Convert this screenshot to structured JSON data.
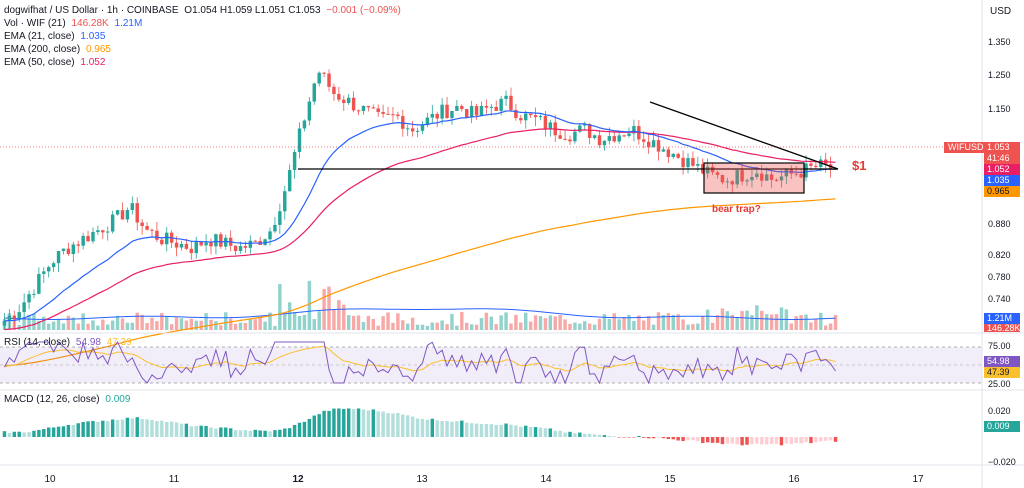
{
  "header": {
    "symbol": "dogwifhat / US Dollar · 1h · COINBASE",
    "ohlc": "O1.054  H1.059  L1.051  C1.053",
    "change": "−0.001 (−0.09%)",
    "currency": "USD"
  },
  "legend": {
    "vol_label": "Vol · WIF (21)",
    "vol_value": "146.28K",
    "vol_ma_value": "1.21M",
    "ema21_label": "EMA (21, close)",
    "ema21_value": "1.035",
    "ema200_label": "EMA (200, close)",
    "ema200_value": "0.965",
    "ema50_label": "EMA (50, close)",
    "ema50_value": "1.052"
  },
  "rsi": {
    "label": "RSI (14, close)",
    "value": "54.98",
    "ma_value": "47.39"
  },
  "macd": {
    "label": "MACD (12, 26, close)",
    "value": "0.009"
  },
  "price_axis_labels": [
    "1.350",
    "1.250",
    "1.150",
    "1.052",
    "0.880",
    "0.820",
    "0.780",
    "0.740"
  ],
  "rsi_axis_labels": [
    "75.00",
    "25.00"
  ],
  "macd_axis_labels": [
    "0.020",
    "0.009",
    "−0.020"
  ],
  "price_tags": {
    "ticker": "WIFUSD",
    "last": "1.053",
    "countdown": "41:46",
    "ema50": "1.052",
    "ema21": "1.035",
    "ema200": "0.965",
    "vol_ma": "1.21M",
    "vol": "146.28K",
    "rsi": "54.98",
    "rsi_ma": "47.39",
    "macd": "0.009"
  },
  "dates": [
    "10",
    "11",
    "12",
    "13",
    "14",
    "15",
    "16",
    "17"
  ],
  "annotations": {
    "dollar": "$1",
    "bear_trap": "bear trap?"
  },
  "colors": {
    "up": "#26a69a",
    "down": "#ef5350",
    "ema21": "#2962ff",
    "ema50": "#e91e63",
    "ema200": "#ff9800",
    "rsi": "#7e57c2",
    "rsi_ma": "#fbc02d"
  },
  "chart_data": {
    "type": "candlestick",
    "timeframe": "1h",
    "x_ticks": [
      "10",
      "11",
      "12",
      "13",
      "14",
      "15",
      "16",
      "17"
    ],
    "y_range": [
      0.7,
      1.38
    ],
    "series": [
      {
        "name": "EMA (21, close)",
        "last": 1.035
      },
      {
        "name": "EMA (50, close)",
        "last": 1.052
      },
      {
        "name": "EMA (200, close)",
        "last": 0.965
      }
    ],
    "close_path": [
      0.72,
      0.75,
      0.8,
      0.85,
      0.88,
      0.9,
      0.92,
      0.94,
      0.97,
      0.92,
      0.9,
      0.89,
      0.88,
      0.9,
      0.89,
      0.88,
      0.89,
      0.92,
      1.02,
      1.15,
      1.27,
      1.22,
      1.2,
      1.18,
      1.16,
      1.17,
      1.14,
      1.16,
      1.18,
      1.19,
      1.17,
      1.19,
      1.2,
      1.17,
      1.16,
      1.14,
      1.13,
      1.14,
      1.12,
      1.13,
      1.14,
      1.12,
      1.1,
      1.08,
      1.06,
      1.04,
      1.03,
      1.04,
      1.05,
      1.03,
      1.04,
      1.05,
      1.06,
      1.053
    ],
    "support_level": 1.0,
    "support_label": "$1",
    "annotation": "bear trap?"
  }
}
